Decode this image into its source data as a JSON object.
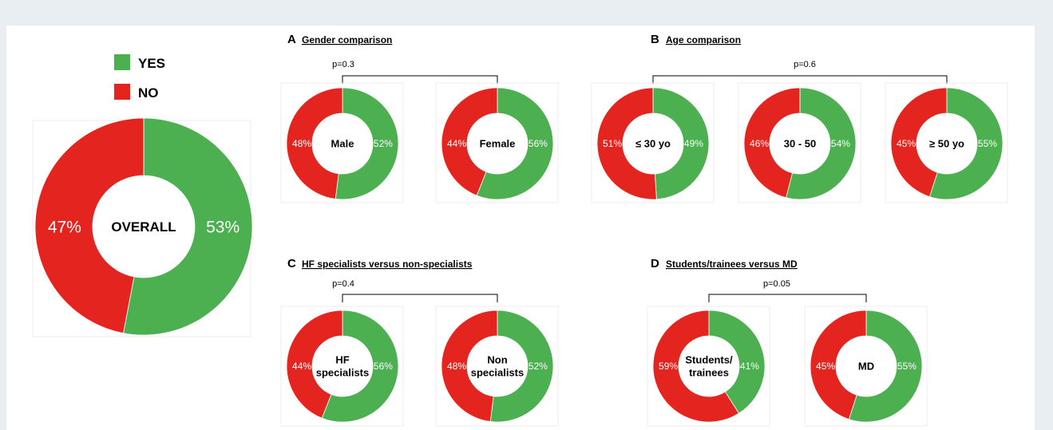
{
  "chart_data": {
    "type": "pie",
    "colors": {
      "yes": "#4caf50",
      "no": "#e3241f"
    },
    "legend": [
      {
        "key": "yes",
        "label": "YES"
      },
      {
        "key": "no",
        "label": "NO"
      }
    ],
    "panels": [
      {
        "id": "overall",
        "charts": [
          {
            "center": "OVERALL",
            "yes": 53,
            "no": 47
          }
        ]
      },
      {
        "id": "A",
        "letter": "A",
        "title": "Gender comparison",
        "p_value": "p=0.3",
        "charts": [
          {
            "center": "Male",
            "yes": 52,
            "no": 48
          },
          {
            "center": "Female",
            "yes": 56,
            "no": 44
          }
        ]
      },
      {
        "id": "B",
        "letter": "B",
        "title": "Age comparison",
        "p_value": "p=0.6",
        "charts": [
          {
            "center": "≤ 30 yo",
            "yes": 49,
            "no": 51
          },
          {
            "center": "30 - 50",
            "yes": 54,
            "no": 46
          },
          {
            "center": "≥ 50 yo",
            "yes": 55,
            "no": 45
          }
        ]
      },
      {
        "id": "C",
        "letter": "C",
        "title": "HF specialists versus non-specialists",
        "p_value": "p=0.4",
        "charts": [
          {
            "center": "HF\nspecialists",
            "yes": 56,
            "no": 44
          },
          {
            "center": "Non\nspecialists",
            "yes": 52,
            "no": 48
          }
        ]
      },
      {
        "id": "D",
        "letter": "D",
        "title": "Students/trainees versus MD",
        "p_value": "p=0.05",
        "charts": [
          {
            "center": "Students/\ntrainees",
            "yes": 41,
            "no": 59
          },
          {
            "center": "MD",
            "yes": 55,
            "no": 45
          }
        ]
      }
    ]
  }
}
